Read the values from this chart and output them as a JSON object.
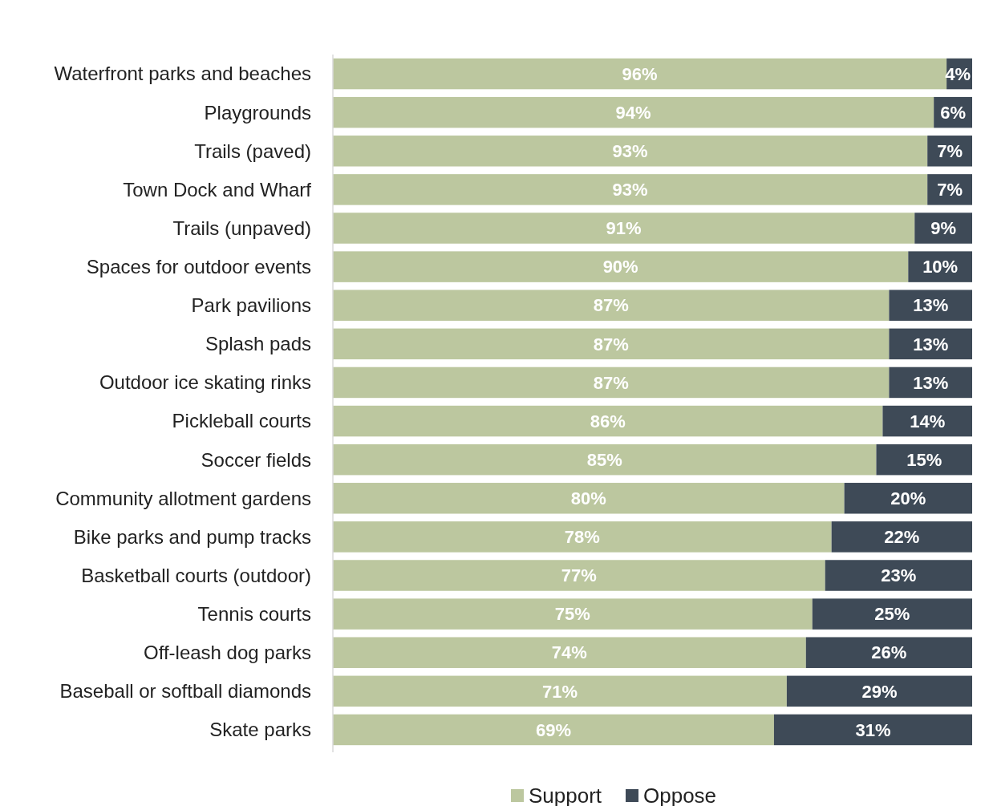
{
  "chart_data": {
    "type": "bar",
    "orientation": "horizontal",
    "stacked": true,
    "categories": [
      "Waterfront parks and beaches",
      "Playgrounds",
      "Trails (paved)",
      "Town Dock and Wharf",
      "Trails (unpaved)",
      "Spaces for outdoor events",
      "Park pavilions",
      "Splash pads",
      "Outdoor ice skating rinks",
      "Pickleball courts",
      "Soccer fields",
      "Community allotment gardens",
      "Bike parks and pump tracks",
      "Basketball courts (outdoor)",
      "Tennis courts",
      "Off-leash dog parks",
      "Baseball or softball diamonds",
      "Skate parks"
    ],
    "series": [
      {
        "name": "Support",
        "color": "#bcc79f",
        "values": [
          96,
          94,
          93,
          93,
          91,
          90,
          87,
          87,
          87,
          86,
          85,
          80,
          78,
          77,
          75,
          74,
          71,
          69
        ],
        "value_labels": [
          "96%",
          "94%",
          "93%",
          "93%",
          "91%",
          "90%",
          "87%",
          "87%",
          "87%",
          "86%",
          "85%",
          "80%",
          "78%",
          "77%",
          "75%",
          "74%",
          "71%",
          "69%"
        ]
      },
      {
        "name": "Oppose",
        "color": "#3e4a57",
        "values": [
          4,
          6,
          7,
          7,
          9,
          10,
          13,
          13,
          13,
          14,
          15,
          20,
          22,
          23,
          25,
          26,
          29,
          31
        ],
        "value_labels": [
          "4%",
          "6%",
          "7%",
          "7%",
          "9%",
          "10%",
          "13%",
          "13%",
          "13%",
          "14%",
          "15%",
          "20%",
          "22%",
          "23%",
          "25%",
          "26%",
          "29%",
          "31%"
        ]
      }
    ],
    "xlim": [
      0,
      100
    ],
    "tick_labels": "y",
    "grid": false,
    "legend": "bottom"
  }
}
